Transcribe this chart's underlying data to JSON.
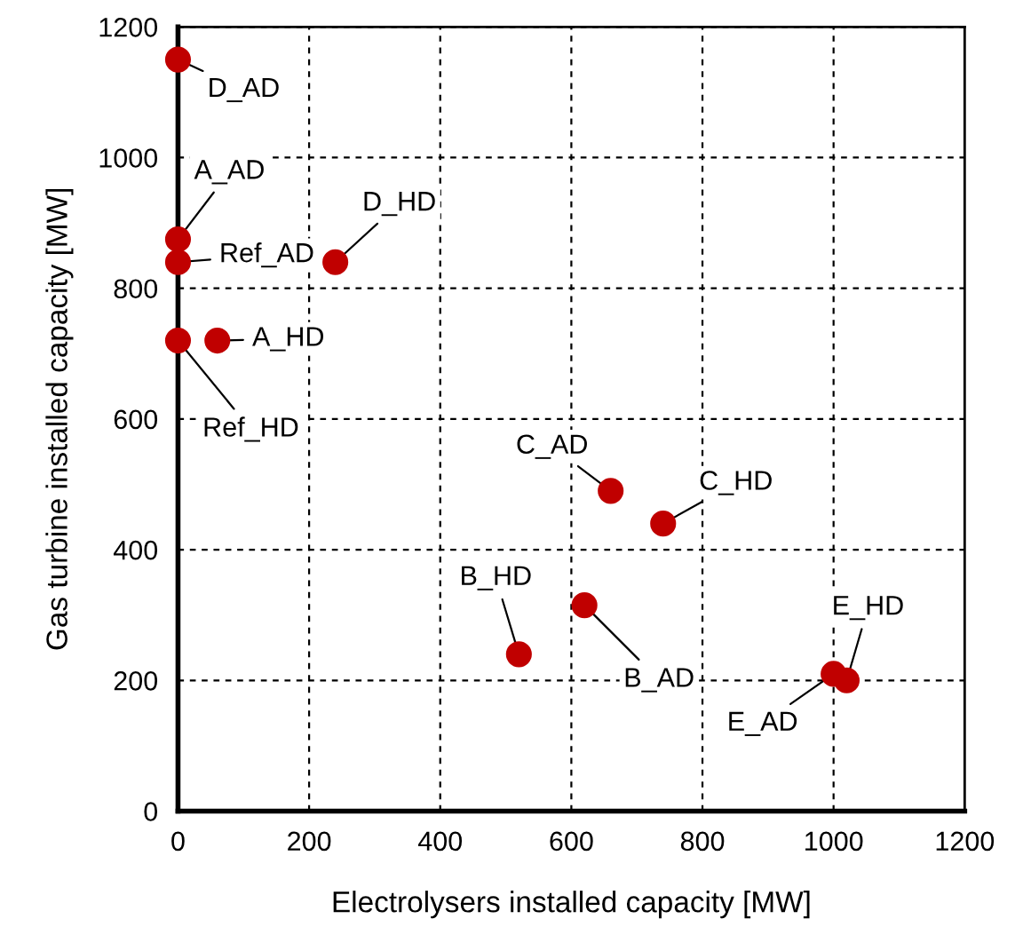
{
  "chart_data": {
    "type": "scatter",
    "xlabel": "Electrolysers installed capacity [MW]",
    "ylabel": "Gas turbine installed capacity [MW]",
    "x": [
      0,
      0,
      0,
      240,
      60,
      0,
      660,
      740,
      520,
      620,
      1000,
      1020
    ],
    "series": [
      {
        "color": "#c00000",
        "values": [
          1150,
          875,
          840,
          840,
          720,
          720,
          490,
          440,
          240,
          315,
          210,
          200
        ]
      }
    ],
    "marker": "circle",
    "annotations": [
      {
        "text": "D_AD",
        "x": 0,
        "y": 1150
      },
      {
        "text": "A_AD",
        "x": 0,
        "y": 875
      },
      {
        "text": "Ref_AD",
        "x": 0,
        "y": 840
      },
      {
        "text": "D_HD",
        "x": 240,
        "y": 840
      },
      {
        "text": "A_HD",
        "x": 60,
        "y": 720
      },
      {
        "text": "Ref_HD",
        "x": 0,
        "y": 720
      },
      {
        "text": "C_AD",
        "x": 660,
        "y": 490
      },
      {
        "text": "C_HD",
        "x": 740,
        "y": 440
      },
      {
        "text": "B_HD",
        "x": 520,
        "y": 240
      },
      {
        "text": "B_AD",
        "x": 620,
        "y": 315
      },
      {
        "text": "E_AD",
        "x": 1000,
        "y": 210
      },
      {
        "text": "E_HD",
        "x": 1020,
        "y": 200
      }
    ],
    "xlim": [
      0,
      1200
    ],
    "xticks": [
      0,
      200,
      400,
      600,
      800,
      1000,
      1200
    ],
    "ylim": [
      0,
      1200
    ],
    "yticks": [
      0,
      200,
      400,
      600,
      800,
      1000,
      1200
    ],
    "grid": true
  }
}
